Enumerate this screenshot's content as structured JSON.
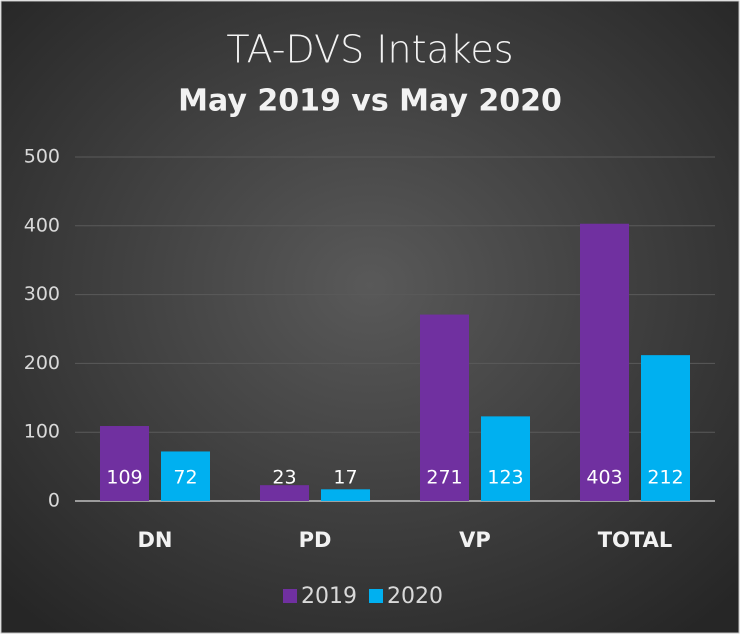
{
  "chart_data": {
    "type": "bar",
    "title": "TA-DVS Intakes",
    "subtitle": "May 2019 vs May 2020",
    "categories": [
      "DN",
      "PD",
      "VP",
      "TOTAL"
    ],
    "series": [
      {
        "name": "2019",
        "color": "#7030a0",
        "values": [
          109,
          23,
          271,
          403
        ]
      },
      {
        "name": "2020",
        "color": "#00b0f0",
        "values": [
          72,
          17,
          123,
          212
        ]
      }
    ],
    "ylim": [
      0,
      500
    ],
    "yticks": [
      0,
      100,
      200,
      300,
      400,
      500
    ],
    "grid": true,
    "legend": "bottom"
  }
}
